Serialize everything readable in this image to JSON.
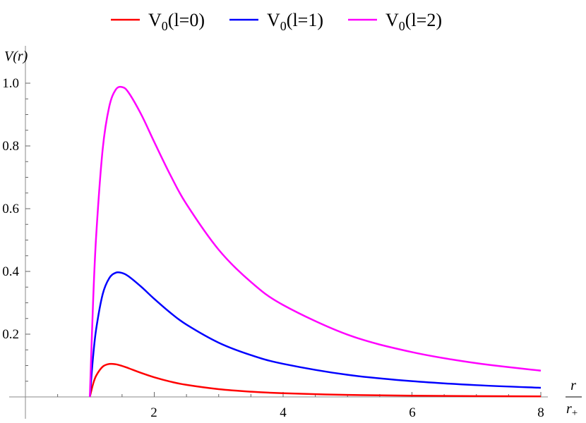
{
  "chart_data": {
    "type": "line",
    "title": "",
    "xlabel": "r / r+",
    "xlabel_num": "r",
    "xlabel_den": "r",
    "xlabel_den_sub": "+",
    "ylabel": "V(r)",
    "xlim": [
      0,
      8
    ],
    "ylim": [
      0,
      1.0
    ],
    "grid": false,
    "legend_position": "top",
    "x_ticks": [
      "2",
      "4",
      "6",
      "8"
    ],
    "y_ticks": [
      "0.2",
      "0.4",
      "0.6",
      "0.8",
      "1.0"
    ],
    "x": [
      1,
      1.05,
      1.1,
      1.2,
      1.3,
      1.4,
      1.5,
      1.6,
      1.8,
      2,
      2.25,
      2.5,
      3,
      3.5,
      4,
      5,
      6,
      7,
      8
    ],
    "series": [
      {
        "name": "V0(l=0)",
        "legend_main": "V",
        "legend_sub": "0",
        "legend_rest": "(l=0)",
        "color": "#ff0000",
        "values": [
          0,
          0.0411,
          0.0683,
          0.0965,
          0.105,
          0.1041,
          0.0988,
          0.0916,
          0.0762,
          0.0625,
          0.0488,
          0.0384,
          0.0247,
          0.0167,
          0.0117,
          0.0064,
          0.0039,
          0.0025,
          0.0017
        ]
      },
      {
        "name": "V0(l=1)",
        "legend_main": "V",
        "legend_sub": "0",
        "legend_rest": "(l=1)",
        "color": "#0000ff",
        "values": [
          0,
          0.1275,
          0.2186,
          0.3279,
          0.3781,
          0.3957,
          0.3951,
          0.3845,
          0.3506,
          0.3125,
          0.2683,
          0.2304,
          0.1728,
          0.1333,
          0.1055,
          0.0704,
          0.0502,
          0.0375,
          0.0291
        ]
      },
      {
        "name": "V0(l=2)",
        "legend_main": "V",
        "legend_sub": "0",
        "legend_rest": "(l=2)",
        "color": "#ff00ff",
        "values": [
          0,
          0.3003,
          0.5191,
          0.7909,
          0.9243,
          0.9788,
          0.9877,
          0.9705,
          0.8993,
          0.8125,
          0.7072,
          0.6144,
          0.4691,
          0.3665,
          0.293,
          0.1984,
          0.1428,
          0.1075,
          0.0837
        ]
      }
    ]
  }
}
